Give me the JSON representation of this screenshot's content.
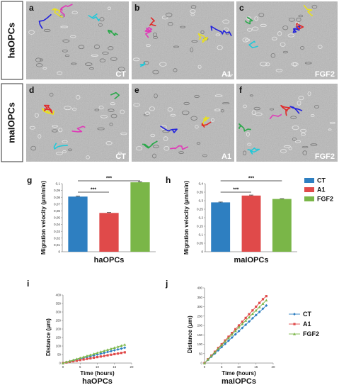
{
  "micro": {
    "row_labels": [
      "haOPCs",
      "maIOPCs"
    ],
    "panels": [
      {
        "letter": "a",
        "condition": "CT"
      },
      {
        "letter": "b",
        "condition": "A1"
      },
      {
        "letter": "c",
        "condition": "FGF2"
      },
      {
        "letter": "d",
        "condition": "CT"
      },
      {
        "letter": "e",
        "condition": "A1"
      },
      {
        "letter": "f",
        "condition": "FGF2"
      }
    ]
  },
  "legend": {
    "items": [
      {
        "name": "CT",
        "color": "#2e7fc1"
      },
      {
        "name": "A1",
        "color": "#e04a4a"
      },
      {
        "name": "FGF2",
        "color": "#7ab648"
      }
    ]
  },
  "chart_data": [
    {
      "id": "g",
      "type": "bar",
      "categories": [
        "CT",
        "A1",
        "FGF2"
      ],
      "values": [
        0.081,
        0.057,
        0.102
      ],
      "errors": [
        0.0008,
        0.0006,
        0.0008
      ],
      "colors": [
        "#2e7fc1",
        "#e04a4a",
        "#7ab648"
      ],
      "ylabel": "Migration velocity (μm/min)",
      "xlabel": "haOPCs",
      "ylim": [
        0,
        0.1
      ],
      "yticks": [
        "0",
        "0,01",
        "0,02",
        "0,03",
        "0,04",
        "0,05",
        "0,06",
        "0,07",
        "0,08",
        "0,09",
        "0,1"
      ],
      "significance": [
        {
          "from": 0,
          "to": 1,
          "label": "***"
        },
        {
          "from": 0,
          "to": 2,
          "label": "***"
        }
      ]
    },
    {
      "id": "h",
      "type": "bar",
      "categories": [
        "CT",
        "A1",
        "FGF2"
      ],
      "values": [
        0.29,
        0.33,
        0.31
      ],
      "errors": [
        0.002,
        0.003,
        0.002
      ],
      "colors": [
        "#2e7fc1",
        "#e04a4a",
        "#7ab648"
      ],
      "ylabel": "Migration velocity (μm/min)",
      "xlabel": "maIOPCs",
      "ylim": [
        0,
        0.4
      ],
      "yticks": [
        "0",
        "0,05",
        "0,1",
        "0,15",
        "0,2",
        "0,25",
        "0,3",
        "0,35",
        "0,4"
      ],
      "significance": [
        {
          "from": 0,
          "to": 1,
          "label": "***"
        },
        {
          "from": 0,
          "to": 2,
          "label": "***"
        }
      ]
    },
    {
      "id": "i",
      "type": "line",
      "x": [
        0,
        1,
        2,
        3,
        4,
        5,
        6,
        7,
        8,
        9,
        10,
        11,
        12,
        13,
        14,
        15,
        16,
        17,
        18
      ],
      "series": [
        {
          "name": "CT",
          "color": "#2e7fc1",
          "marker": "diamond",
          "values": [
            0,
            5,
            10,
            15,
            20,
            25,
            30,
            35,
            40,
            45,
            50,
            55,
            60,
            65,
            70,
            75,
            80,
            85,
            90
          ]
        },
        {
          "name": "A1",
          "color": "#e04a4a",
          "marker": "square",
          "values": [
            0,
            3.5,
            7,
            10.5,
            14,
            17.5,
            21,
            24.5,
            28,
            31.5,
            35,
            38.5,
            42,
            45.5,
            49,
            52.5,
            56,
            59.5,
            63
          ]
        },
        {
          "name": "FGF2",
          "color": "#7ab648",
          "marker": "triangle",
          "values": [
            0,
            6,
            12,
            18,
            24,
            30,
            36,
            42,
            48,
            54,
            60,
            66,
            72,
            78,
            84,
            90,
            96,
            102,
            108
          ]
        }
      ],
      "xlabel": "Time (hours)",
      "ylabel": "Distance (μm)",
      "caption": "haOPCs",
      "xlim": [
        0,
        20
      ],
      "ylim": [
        0,
        400
      ],
      "xticks": [
        0,
        5,
        10,
        15,
        20
      ],
      "yticks": [
        0,
        50,
        100,
        150,
        200,
        250,
        300,
        350,
        400
      ]
    },
    {
      "id": "j",
      "type": "line",
      "x": [
        0,
        1,
        2,
        3,
        4,
        5,
        6,
        7,
        8,
        9,
        10,
        11,
        12,
        13,
        14,
        15,
        16,
        17,
        18
      ],
      "series": [
        {
          "name": "CT",
          "color": "#2e7fc1",
          "marker": "diamond",
          "values": [
            0,
            17,
            34,
            51,
            68,
            85,
            102,
            119,
            136,
            153,
            170,
            187,
            204,
            221,
            238,
            255,
            272,
            289,
            306
          ]
        },
        {
          "name": "A1",
          "color": "#e04a4a",
          "marker": "square",
          "values": [
            0,
            20,
            40,
            60,
            80,
            100,
            120,
            140,
            160,
            180,
            200,
            220,
            240,
            260,
            280,
            300,
            320,
            340,
            356
          ]
        },
        {
          "name": "FGF2",
          "color": "#7ab648",
          "marker": "triangle",
          "values": [
            0,
            19,
            38,
            57,
            76,
            95,
            114,
            133,
            152,
            171,
            190,
            208,
            226,
            244,
            262,
            280,
            298,
            316,
            334
          ]
        }
      ],
      "xlabel": "Time (hours)",
      "ylabel": "Distance (μm)",
      "caption": "maIOPCs",
      "xlim": [
        0,
        20
      ],
      "ylim": [
        0,
        400
      ],
      "xticks": [
        0,
        5,
        10,
        15,
        20
      ],
      "yticks": [
        0,
        50,
        100,
        150,
        200,
        250,
        300,
        350,
        400
      ]
    }
  ]
}
